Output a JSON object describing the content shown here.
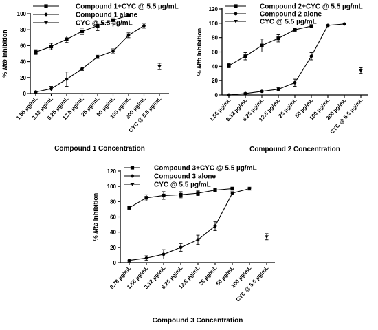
{
  "chart_data": [
    {
      "type": "line",
      "categories": [
        "1.56 µg/mL",
        "3.12 µg/mL",
        "6.25 µg/mL",
        "12.5 µg/mL",
        "25 µg/mL",
        "50 µg/mL",
        "100 µg/mL",
        "200 µg/mL",
        "CYC @ 5.5 µg/mL"
      ],
      "ylabel_prefix": "% ",
      "ylabel_italic": "Mtb",
      "ylabel_suffix": " Inhibition",
      "xlabel": "Compound 1 Concentration",
      "ylim": [
        0,
        100
      ],
      "yticks": [
        0,
        20,
        40,
        60,
        80,
        100
      ],
      "legend_position": "top-left",
      "series": [
        {
          "name": "Compound 1+CYC @ 5.5 µg/mL",
          "marker": "square",
          "x": [
            0,
            1,
            2,
            3,
            4,
            5,
            6
          ],
          "values": [
            52,
            59,
            68,
            78,
            85,
            92,
            98
          ],
          "errors": [
            3,
            4,
            4,
            4,
            6,
            4,
            1
          ]
        },
        {
          "name": "Compound 1 alone",
          "marker": "circle",
          "x": [
            0,
            1,
            2,
            3,
            4,
            5,
            6,
            7
          ],
          "values": [
            2,
            6,
            18,
            31,
            46,
            53,
            73,
            85
          ],
          "errors": [
            1,
            3,
            9,
            2,
            2,
            3,
            3,
            3
          ]
        },
        {
          "name": "CYC @ 5.5 µg/mL",
          "marker": "triangle",
          "x": [
            8
          ],
          "values": [
            34
          ],
          "errors": [
            4
          ]
        }
      ]
    },
    {
      "type": "line",
      "categories": [
        "1.56 µg/mL",
        "3.12 µg/mL",
        "6.25 µg/mL",
        "12.5 µg/mL",
        "25 µg/mL",
        "50 µg/mL",
        "100 µg/mL",
        "200 µg/mL",
        "CYC @ 5.5 µg/mL"
      ],
      "ylabel_prefix": "% ",
      "ylabel_italic": "Mtb",
      "ylabel_suffix": " Inhibition",
      "xlabel": "Compound 2 Concentration",
      "ylim": [
        0,
        120
      ],
      "yticks": [
        0,
        20,
        40,
        60,
        80,
        100,
        120
      ],
      "legend_position": "top-left",
      "series": [
        {
          "name": "Compound 2+CYC @ 5.5 µg/mL",
          "marker": "square",
          "x": [
            0,
            1,
            2,
            3,
            4,
            5
          ],
          "values": [
            41,
            54,
            69,
            79,
            91,
            96
          ],
          "errors": [
            3,
            5,
            9,
            5,
            2,
            1
          ]
        },
        {
          "name": "Compound 2 alone",
          "marker": "circle",
          "x": [
            0,
            1,
            2,
            3,
            4,
            5,
            6,
            7
          ],
          "values": [
            0,
            2,
            5,
            8,
            17,
            54,
            97,
            99
          ],
          "errors": [
            0,
            1,
            1,
            2,
            5,
            5,
            1,
            0
          ]
        },
        {
          "name": "CYC @ 5.5 µg/mL",
          "marker": "triangle",
          "x": [
            8
          ],
          "values": [
            34
          ],
          "errors": [
            4
          ]
        }
      ]
    },
    {
      "type": "line",
      "categories": [
        "0.78 µg/mL",
        "1.56 µg/mL",
        "3.12 µg/mL",
        "6.25 µg/mL",
        "12.5 µg/mL",
        "25 µg/mL",
        "50 µg/mL",
        "100 µg/mL",
        "CYC @ 5.5 µg/mL"
      ],
      "ylabel_prefix": "% ",
      "ylabel_italic": "Mtb",
      "ylabel_suffix": " Inhibition",
      "xlabel": "Compound 3 Concentration",
      "ylim": [
        0,
        120
      ],
      "yticks": [
        0,
        20,
        40,
        60,
        80,
        100,
        120
      ],
      "legend_position": "top-left",
      "series": [
        {
          "name": "Compound 3+CYC @ 5.5 µg/mL",
          "marker": "square",
          "x": [
            0,
            1,
            2,
            3,
            4,
            5,
            6
          ],
          "values": [
            72,
            85,
            88,
            89,
            91,
            95,
            97
          ],
          "errors": [
            2,
            4,
            5,
            4,
            3,
            2,
            2
          ]
        },
        {
          "name": "Compound 3 alone",
          "marker": "circle",
          "x": [
            0,
            1,
            2,
            3,
            4,
            5,
            6,
            7
          ],
          "values": [
            3,
            6,
            11,
            20,
            30,
            48,
            91,
            97
          ],
          "errors": [
            2,
            3,
            6,
            5,
            6,
            6,
            2,
            2
          ]
        },
        {
          "name": "CYC @ 5.5 µg/mL",
          "marker": "triangle",
          "x": [
            8
          ],
          "values": [
            34
          ],
          "errors": [
            4
          ]
        }
      ]
    }
  ]
}
